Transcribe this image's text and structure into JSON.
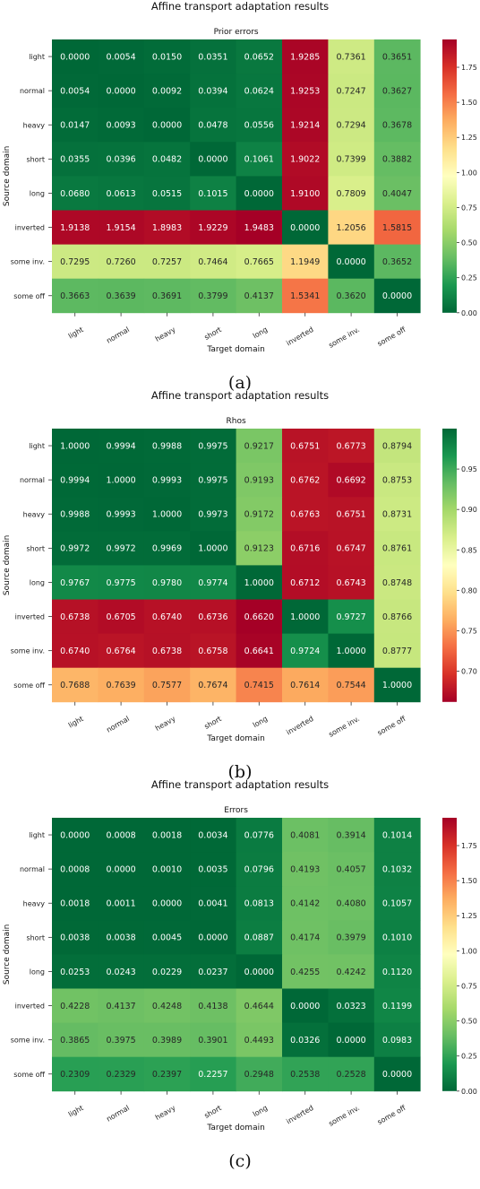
{
  "chart_data": [
    {
      "type": "heatmap",
      "title": "Affine transport adaptation results",
      "subtitle": "Prior errors",
      "xlabel": "Target domain",
      "ylabel": "Source domain",
      "caption": "(a)",
      "colormap": "RdYlGn_r",
      "vmin": 0.0,
      "vmax": 1.9483,
      "colorbar_ticks": [
        "0.00",
        "0.25",
        "0.50",
        "0.75",
        "1.00",
        "1.25",
        "1.50",
        "1.75"
      ],
      "colorbar_tick_values": [
        0.0,
        0.25,
        0.5,
        0.75,
        1.0,
        1.25,
        1.5,
        1.75
      ],
      "x_categories": [
        "light",
        "normal",
        "heavy",
        "short",
        "long",
        "inverted",
        "some inv.",
        "some off"
      ],
      "y_categories": [
        "light",
        "normal",
        "heavy",
        "short",
        "long",
        "inverted",
        "some inv.",
        "some off"
      ],
      "values": [
        [
          0.0,
          0.0054,
          0.015,
          0.0351,
          0.0652,
          1.9285,
          0.7361,
          0.3651
        ],
        [
          0.0054,
          0.0,
          0.0092,
          0.0394,
          0.0624,
          1.9253,
          0.7247,
          0.3627
        ],
        [
          0.0147,
          0.0093,
          0.0,
          0.0478,
          0.0556,
          1.9214,
          0.7294,
          0.3678
        ],
        [
          0.0355,
          0.0396,
          0.0482,
          0.0,
          0.1061,
          1.9022,
          0.7399,
          0.3882
        ],
        [
          0.068,
          0.0613,
          0.0515,
          0.1015,
          0.0,
          1.91,
          0.7809,
          0.4047
        ],
        [
          1.9138,
          1.9154,
          1.8983,
          1.9229,
          1.9483,
          0.0,
          1.2056,
          1.5815
        ],
        [
          0.7295,
          0.726,
          0.7257,
          0.7464,
          0.7665,
          1.1949,
          0.0,
          0.3652
        ],
        [
          0.3663,
          0.3639,
          0.3691,
          0.3799,
          0.4137,
          1.5341,
          0.362,
          0.0
        ]
      ]
    },
    {
      "type": "heatmap",
      "title": "Affine transport adaptation results",
      "subtitle": "Rhos",
      "xlabel": "Target domain",
      "ylabel": "Source domain",
      "caption": "(b)",
      "colormap": "RdYlGn",
      "vmin": 0.662,
      "vmax": 1.0,
      "colorbar_ticks": [
        "0.70",
        "0.75",
        "0.80",
        "0.85",
        "0.90",
        "0.95"
      ],
      "colorbar_tick_values": [
        0.7,
        0.75,
        0.8,
        0.85,
        0.9,
        0.95
      ],
      "x_categories": [
        "light",
        "normal",
        "heavy",
        "short",
        "long",
        "inverted",
        "some inv.",
        "some off"
      ],
      "y_categories": [
        "light",
        "normal",
        "heavy",
        "short",
        "long",
        "inverted",
        "some inv.",
        "some off"
      ],
      "values": [
        [
          1.0,
          0.9994,
          0.9988,
          0.9975,
          0.9217,
          0.6751,
          0.6773,
          0.8794
        ],
        [
          0.9994,
          1.0,
          0.9993,
          0.9975,
          0.9193,
          0.6762,
          0.6692,
          0.8753
        ],
        [
          0.9988,
          0.9993,
          1.0,
          0.9973,
          0.9172,
          0.6763,
          0.6751,
          0.8731
        ],
        [
          0.9972,
          0.9972,
          0.9969,
          1.0,
          0.9123,
          0.6716,
          0.6747,
          0.8761
        ],
        [
          0.9767,
          0.9775,
          0.978,
          0.9774,
          1.0,
          0.6712,
          0.6743,
          0.8748
        ],
        [
          0.6738,
          0.6705,
          0.674,
          0.6736,
          0.662,
          1.0,
          0.9727,
          0.8766
        ],
        [
          0.674,
          0.6764,
          0.6738,
          0.6758,
          0.6641,
          0.9724,
          1.0,
          0.8777
        ],
        [
          0.7688,
          0.7639,
          0.7577,
          0.7674,
          0.7415,
          0.7614,
          0.7544,
          1.0
        ]
      ]
    },
    {
      "type": "heatmap",
      "title": "Affine transport adaptation results",
      "subtitle": "Errors",
      "xlabel": "Target domain",
      "ylabel": "Source domain",
      "caption": "(c)",
      "colormap": "RdYlGn_r",
      "vmin": 0.0,
      "vmax": 1.9483,
      "colorbar_ticks": [
        "0.00",
        "0.25",
        "0.50",
        "0.75",
        "1.00",
        "1.25",
        "1.50",
        "1.75"
      ],
      "colorbar_tick_values": [
        0.0,
        0.25,
        0.5,
        0.75,
        1.0,
        1.25,
        1.5,
        1.75
      ],
      "x_categories": [
        "light",
        "normal",
        "heavy",
        "short",
        "long",
        "inverted",
        "some inv.",
        "some off"
      ],
      "y_categories": [
        "light",
        "normal",
        "heavy",
        "short",
        "long",
        "inverted",
        "some inv.",
        "some off"
      ],
      "values": [
        [
          0.0,
          0.0008,
          0.0018,
          0.0034,
          0.0776,
          0.4081,
          0.3914,
          0.1014
        ],
        [
          0.0008,
          0.0,
          0.001,
          0.0035,
          0.0796,
          0.4193,
          0.4057,
          0.1032
        ],
        [
          0.0018,
          0.0011,
          0.0,
          0.0041,
          0.0813,
          0.4142,
          0.408,
          0.1057
        ],
        [
          0.0038,
          0.0038,
          0.0045,
          0.0,
          0.0887,
          0.4174,
          0.3979,
          0.101
        ],
        [
          0.0253,
          0.0243,
          0.0229,
          0.0237,
          0.0,
          0.4255,
          0.4242,
          0.112
        ],
        [
          0.4228,
          0.4137,
          0.4248,
          0.4138,
          0.4644,
          0.0,
          0.0323,
          0.1199
        ],
        [
          0.3865,
          0.3975,
          0.3989,
          0.3901,
          0.4493,
          0.0326,
          0.0,
          0.0983
        ],
        [
          0.2309,
          0.2329,
          0.2397,
          0.2257,
          0.2948,
          0.2538,
          0.2528,
          0.0
        ]
      ]
    }
  ]
}
